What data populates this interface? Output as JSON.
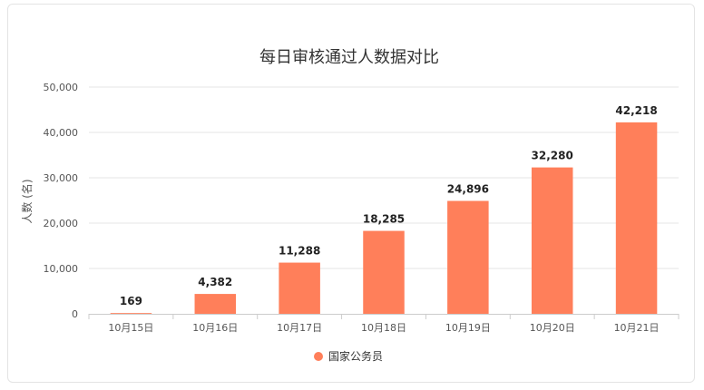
{
  "chart_data": {
    "type": "bar",
    "title": "每日审核通过人数据对比",
    "ylabel": "人数 (名)",
    "xlabel": "",
    "categories": [
      "10月15日",
      "10月16日",
      "10月17日",
      "10月18日",
      "10月19日",
      "10月20日",
      "10月21日"
    ],
    "series": [
      {
        "name": "国家公务员",
        "values": [
          169,
          4382,
          11288,
          18285,
          24896,
          32280,
          42218
        ],
        "labels": [
          "169",
          "4,382",
          "11,288",
          "18,285",
          "24,896",
          "32,280",
          "42,218"
        ],
        "color": "#ff7f5a"
      }
    ],
    "ylim": [
      0,
      50000
    ],
    "yticks": [
      "0",
      "10,000",
      "20,000",
      "30,000",
      "40,000",
      "50,000"
    ],
    "grid": true,
    "legend": "bottom-center"
  }
}
